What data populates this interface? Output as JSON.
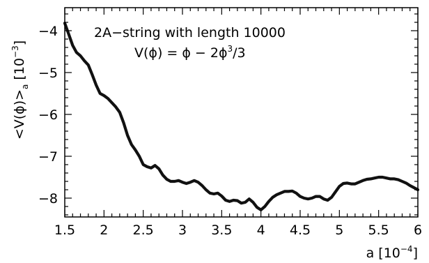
{
  "chart_data": {
    "type": "line",
    "annotations": [
      {
        "parts": [
          {
            "t": "2A−string with length 10000"
          }
        ]
      },
      {
        "parts": [
          {
            "t": "V(ϕ) = ϕ − 2ϕ"
          },
          {
            "t": "3",
            "sup": true
          },
          {
            "t": "/3"
          }
        ]
      }
    ],
    "xlabel_parts": [
      {
        "t": "a [10"
      },
      {
        "t": "−4",
        "sup": true
      },
      {
        "t": "]"
      }
    ],
    "ylabel_parts": [
      {
        "t": "<V(ϕ)>"
      },
      {
        "t": "a",
        "sub": true
      },
      {
        "t": " [10"
      },
      {
        "t": "−3",
        "sup": true
      },
      {
        "t": "]"
      }
    ],
    "xlim": [
      1.5,
      6.0
    ],
    "ylim": [
      -8.45,
      -3.45
    ],
    "xticks": [
      1.5,
      2,
      2.5,
      3,
      3.5,
      4,
      4.5,
      5,
      5.5,
      6
    ],
    "xtick_labels": [
      "1.5",
      "2",
      "2.5",
      "3",
      "3.5",
      "4",
      "4.5",
      "5",
      "5.5",
      "6"
    ],
    "yticks": [
      -4,
      -5,
      -6,
      -7,
      -8
    ],
    "ytick_labels": [
      "−4",
      "−5",
      "−6",
      "−7",
      "−8"
    ],
    "grid": false,
    "series": [
      {
        "line_color": "#111111",
        "x": [
          1.5,
          1.55,
          1.6,
          1.65,
          1.7,
          1.75,
          1.8,
          1.85,
          1.9,
          1.95,
          2.0,
          2.05,
          2.1,
          2.15,
          2.2,
          2.25,
          2.3,
          2.35,
          2.4,
          2.45,
          2.5,
          2.55,
          2.6,
          2.65,
          2.7,
          2.75,
          2.8,
          2.85,
          2.9,
          2.95,
          3.0,
          3.05,
          3.1,
          3.15,
          3.2,
          3.25,
          3.3,
          3.35,
          3.4,
          3.45,
          3.5,
          3.55,
          3.6,
          3.65,
          3.7,
          3.75,
          3.8,
          3.85,
          3.9,
          3.95,
          4.0,
          4.05,
          4.1,
          4.15,
          4.2,
          4.25,
          4.3,
          4.35,
          4.4,
          4.45,
          4.5,
          4.55,
          4.6,
          4.65,
          4.7,
          4.75,
          4.8,
          4.85,
          4.9,
          4.95,
          5.0,
          5.05,
          5.1,
          5.15,
          5.2,
          5.25,
          5.3,
          5.35,
          5.4,
          5.45,
          5.5,
          5.55,
          5.6,
          5.65,
          5.7,
          5.75,
          5.8,
          5.85,
          5.9,
          5.95,
          6.0
        ],
        "y": [
          -3.82,
          -4.08,
          -4.35,
          -4.52,
          -4.6,
          -4.72,
          -4.82,
          -5.05,
          -5.3,
          -5.5,
          -5.55,
          -5.62,
          -5.72,
          -5.82,
          -5.95,
          -6.2,
          -6.5,
          -6.72,
          -6.85,
          -7.0,
          -7.2,
          -7.25,
          -7.28,
          -7.22,
          -7.3,
          -7.45,
          -7.55,
          -7.6,
          -7.6,
          -7.58,
          -7.62,
          -7.65,
          -7.62,
          -7.58,
          -7.62,
          -7.7,
          -7.8,
          -7.88,
          -7.9,
          -7.88,
          -7.95,
          -8.05,
          -8.08,
          -8.05,
          -8.06,
          -8.12,
          -8.1,
          -8.02,
          -8.1,
          -8.22,
          -8.28,
          -8.2,
          -8.08,
          -7.98,
          -7.92,
          -7.88,
          -7.84,
          -7.84,
          -7.83,
          -7.88,
          -7.96,
          -8.0,
          -8.02,
          -8.0,
          -7.96,
          -7.96,
          -8.02,
          -8.05,
          -7.98,
          -7.85,
          -7.72,
          -7.65,
          -7.64,
          -7.66,
          -7.66,
          -7.62,
          -7.58,
          -7.55,
          -7.54,
          -7.52,
          -7.5,
          -7.5,
          -7.52,
          -7.54,
          -7.54,
          -7.56,
          -7.6,
          -7.64,
          -7.7,
          -7.75,
          -7.8
        ]
      }
    ]
  }
}
